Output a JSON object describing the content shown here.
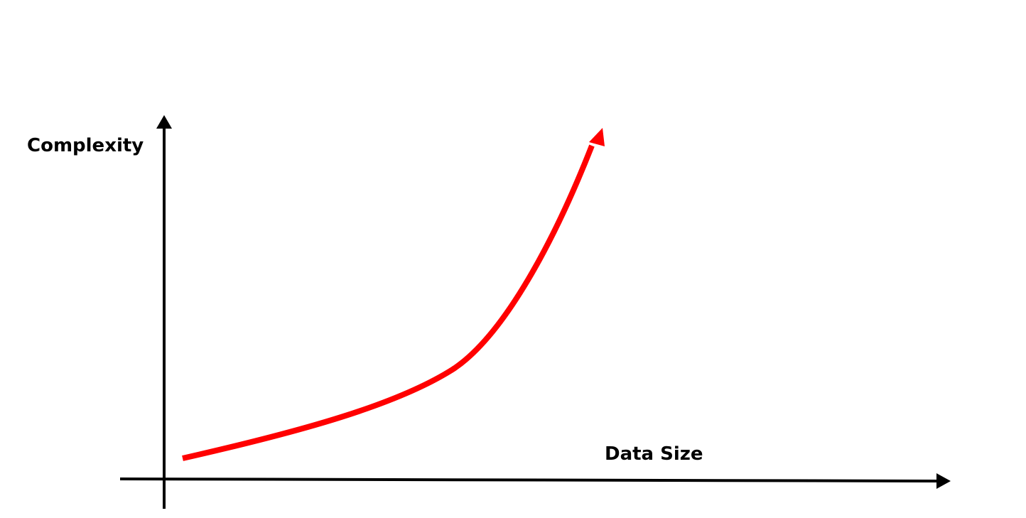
{
  "axes": {
    "y_label": "Complexity",
    "x_label": "Data Size",
    "axis_color": "#000000"
  },
  "curve": {
    "color": "#ff0000",
    "shape": "slow-then-steep increase",
    "has_arrowhead": true
  }
}
